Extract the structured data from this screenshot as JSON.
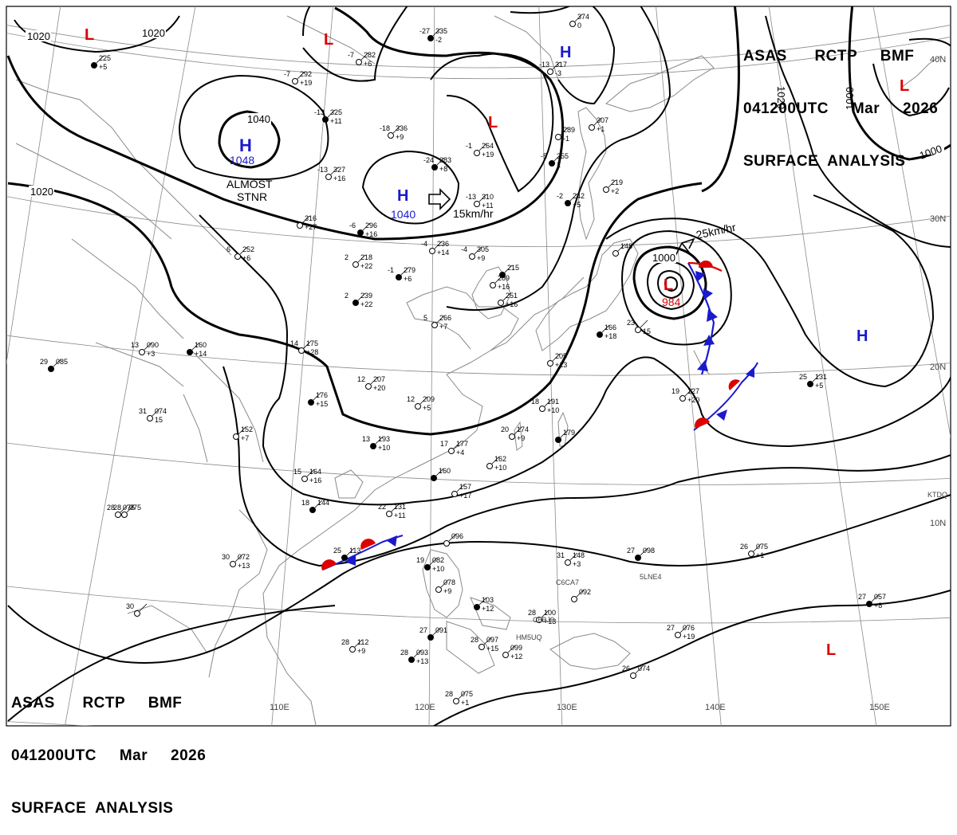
{
  "header_top": {
    "line1": "ASAS      RCTP     BMF",
    "line2": "041200UTC     Mar     2026",
    "line3": "SURFACE  ANALYSIS"
  },
  "header_bottom": {
    "line1": "ASAS      RCTP     BMF",
    "line2": "041200UTC     Mar     2026",
    "line3": "SURFACE  ANALYSIS"
  },
  "lat_labels": {
    "n40": "40N",
    "n30": "30N",
    "n20": "20N",
    "n10": "10N"
  },
  "lon_labels": {
    "e110": "110E",
    "e120": "120E",
    "e130": "130E",
    "e140": "140E",
    "e150": "150E"
  },
  "isobar_labels": {
    "a": "1020",
    "b": "1020",
    "c": "1020",
    "d": "1040",
    "e": "1020",
    "f": "1000",
    "g": "1000",
    "h": "1000"
  },
  "pressure_centers": {
    "high_mongolia": {
      "symbol": "H",
      "value": "1048",
      "note1": "ALMOST",
      "note2": "STNR",
      "color": "#1a1acc"
    },
    "high_north_china": {
      "symbol": "H",
      "value": "1040",
      "motion": "15km/hr",
      "color": "#1a1acc"
    },
    "high_north": {
      "symbol": "H",
      "color": "#1a1acc"
    },
    "high_pacific": {
      "symbol": "H",
      "color": "#1a1acc"
    },
    "low_japan": {
      "symbol": "L",
      "value": "984",
      "motion": "25km/hr",
      "color": "#dd0000"
    },
    "low_nw": {
      "symbol": "L",
      "color": "#dd0000"
    },
    "low_n": {
      "symbol": "L",
      "color": "#dd0000"
    },
    "low_ne_china": {
      "symbol": "L",
      "color": "#dd0000"
    },
    "low_ne": {
      "symbol": "L",
      "color": "#dd0000"
    },
    "low_se": {
      "symbol": "L",
      "color": "#dd0000"
    }
  },
  "station_plots": [
    {
      "t": "-27",
      "p": "335",
      "x2": "-2"
    },
    {
      "t": "",
      "p": "374",
      "x2": "0"
    },
    {
      "t": "-13",
      "p": "317",
      "x2": "-3"
    },
    {
      "t": "",
      "p": "225",
      "x2": "+5"
    },
    {
      "t": "-7",
      "p": "282",
      "x2": "+6"
    },
    {
      "t": "-7",
      "p": "292",
      "x2": "+19"
    },
    {
      "t": "-13",
      "p": "325",
      "x2": "+11"
    },
    {
      "t": "-18",
      "p": "336",
      "x2": "+9"
    },
    {
      "t": "-1",
      "p": "264",
      "x2": "+19"
    },
    {
      "t": "-5",
      "p": "255",
      "x2": "1"
    },
    {
      "t": "",
      "p": "307",
      "x2": "+1"
    },
    {
      "t": "",
      "p": "289",
      "x2": "-1"
    },
    {
      "t": "-24",
      "p": "383",
      "x2": "+8"
    },
    {
      "t": "-13",
      "p": "327",
      "x2": "+16"
    },
    {
      "t": "-13",
      "p": "310",
      "x2": "+11"
    },
    {
      "t": "-2",
      "p": "242",
      "x2": "+5"
    },
    {
      "t": "",
      "p": "219",
      "x2": "+2"
    },
    {
      "t": "",
      "p": "316",
      "x2": "+27"
    },
    {
      "t": "-6",
      "p": "296",
      "x2": "+16"
    },
    {
      "t": "6",
      "p": "252",
      "x2": "+6"
    },
    {
      "t": "2",
      "p": "218",
      "x2": "+22"
    },
    {
      "t": "-1",
      "p": "279",
      "x2": "+6"
    },
    {
      "t": "-4",
      "p": "236",
      "x2": "+14"
    },
    {
      "t": "-4",
      "p": "305",
      "x2": "+9"
    },
    {
      "t": "",
      "p": "215",
      "x2": ""
    },
    {
      "t": "",
      "p": "289",
      "x2": "+16"
    },
    {
      "t": "",
      "p": "251",
      "x2": "+16"
    },
    {
      "t": "2",
      "p": "239",
      "x2": "+22"
    },
    {
      "t": "5",
      "p": "266",
      "x2": "+7"
    },
    {
      "t": "",
      "p": "148",
      "x2": ""
    },
    {
      "t": "",
      "p": "166",
      "x2": "+18"
    },
    {
      "t": "23",
      "p": "",
      "x2": "15"
    },
    {
      "t": "13",
      "p": "090",
      "x2": "+3"
    },
    {
      "t": "",
      "p": "160",
      "x2": "+14"
    },
    {
      "t": "14",
      "p": "175",
      "x2": "+28"
    },
    {
      "t": "",
      "p": "205",
      "x2": "+13"
    },
    {
      "t": "29",
      "p": "085",
      "x2": ""
    },
    {
      "t": "12",
      "p": "207",
      "x2": "+20"
    },
    {
      "t": "12",
      "p": "209",
      "x2": "+5"
    },
    {
      "t": "",
      "p": "176",
      "x2": "+15"
    },
    {
      "t": "18",
      "p": "191",
      "x2": "+10"
    },
    {
      "t": "19",
      "p": "127",
      "x2": "+20"
    },
    {
      "t": "25",
      "p": "131",
      "x2": "+5"
    },
    {
      "t": "31",
      "p": "074",
      "x2": "15"
    },
    {
      "t": "",
      "p": "152",
      "x2": "+7"
    },
    {
      "t": "13",
      "p": "193",
      "x2": "+10"
    },
    {
      "t": "17",
      "p": "177",
      "x2": "+4"
    },
    {
      "t": "20",
      "p": "174",
      "x2": "+9"
    },
    {
      "t": "",
      "p": "179",
      "x2": ""
    },
    {
      "t": "",
      "p": "162",
      "x2": "+10"
    },
    {
      "t": "15",
      "p": "164",
      "x2": "+16"
    },
    {
      "t": "",
      "p": "160",
      "x2": ""
    },
    {
      "t": "",
      "p": "157",
      "x2": "+17"
    },
    {
      "t": "28",
      "p": "075",
      "x2": ""
    },
    {
      "t": "18",
      "p": "144",
      "x2": ""
    },
    {
      "t": "22",
      "p": "131",
      "x2": "+11"
    },
    {
      "t": "28",
      "p": "075",
      "x2": ""
    },
    {
      "t": "25",
      "p": "113",
      "x2": ""
    },
    {
      "t": "30",
      "p": "072",
      "x2": "+13"
    },
    {
      "t": "",
      "p": "096",
      "x2": ""
    },
    {
      "t": "19",
      "p": "082",
      "x2": "+10"
    },
    {
      "t": "",
      "p": "078",
      "x2": "+9"
    },
    {
      "t": "31",
      "p": "148",
      "x2": "+3"
    },
    {
      "t": "27",
      "p": "098",
      "x2": ""
    },
    {
      "t": "26",
      "p": "075",
      "x2": "+1"
    },
    {
      "t": "",
      "p": "092",
      "x2": ""
    },
    {
      "t": "",
      "p": "103",
      "x2": "+12"
    },
    {
      "t": "28",
      "p": "100",
      "x2": "+13"
    },
    {
      "t": "27",
      "p": "076",
      "x2": "+19"
    },
    {
      "t": "27",
      "p": "057",
      "x2": "+8"
    },
    {
      "t": "30",
      "p": "",
      "x2": ""
    },
    {
      "t": "28",
      "p": "112",
      "x2": "+9"
    },
    {
      "t": "27",
      "p": "091",
      "x2": ""
    },
    {
      "t": "28",
      "p": "097",
      "x2": "+15"
    },
    {
      "t": "",
      "p": "099",
      "x2": "+12"
    },
    {
      "t": "28",
      "p": "093",
      "x2": "+13"
    },
    {
      "t": "26",
      "p": "074",
      "x2": ""
    },
    {
      "t": "28",
      "p": "075",
      "x2": "+1"
    }
  ],
  "ship_ids": {
    "s1": "C6CA7",
    "s2": "5LNE4",
    "s3": "C6BJ9",
    "s4": "HM5UQ",
    "s5": "KTDQ"
  },
  "colors": {
    "warm_front": "#dd0000",
    "cold_front": "#1a1acc",
    "isobar": "#000000",
    "grid": "#888888",
    "coast": "#888888"
  }
}
